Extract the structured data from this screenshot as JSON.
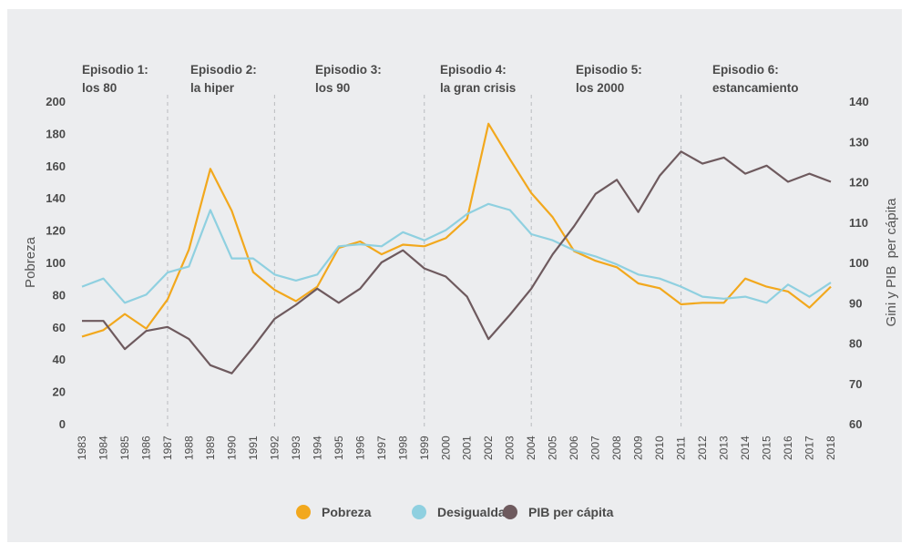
{
  "chart_data": {
    "type": "line",
    "title": "",
    "xlabel": "",
    "ylabel_left": "Pobreza",
    "ylabel_right": "Gini y PIB  per cápita",
    "x": [
      1983,
      1984,
      1985,
      1986,
      1987,
      1988,
      1989,
      1990,
      1991,
      1992,
      1993,
      1994,
      1995,
      1996,
      1997,
      1998,
      1999,
      2000,
      2001,
      2002,
      2003,
      2004,
      2005,
      2006,
      2007,
      2008,
      2009,
      2010,
      2011,
      2012,
      2013,
      2014,
      2015,
      2016,
      2017,
      2018
    ],
    "ylim_left": [
      0,
      200
    ],
    "ylim_right": [
      60,
      140
    ],
    "yticks_left": [
      0,
      20,
      40,
      60,
      80,
      100,
      120,
      140,
      160,
      180,
      200
    ],
    "yticks_right": [
      60,
      70,
      80,
      90,
      100,
      110,
      120,
      130,
      140
    ],
    "grid": false,
    "legend_position": "bottom-center",
    "series": [
      {
        "name": "Pobreza",
        "axis": "left",
        "color": "#F2A81D",
        "values": [
          54,
          58,
          68,
          59,
          77,
          108,
          158,
          132,
          94,
          83,
          76,
          85,
          109,
          113,
          105,
          111,
          110,
          115,
          127,
          186,
          164,
          143,
          128,
          107,
          101,
          97,
          87,
          84,
          74,
          75,
          75,
          90,
          85,
          82,
          72,
          85
        ]
      },
      {
        "name": "Desigualdad",
        "axis": "right",
        "color": "#8FD0E0",
        "values": [
          94,
          96,
          90,
          92,
          97.5,
          99,
          113,
          101,
          101,
          97,
          95.5,
          97,
          104,
          104.5,
          104,
          107.5,
          105.5,
          108,
          112,
          114.5,
          113,
          107,
          105.5,
          103,
          101.5,
          99.5,
          97,
          96,
          94,
          91.5,
          91,
          91.5,
          90,
          94.5,
          91.5,
          95
        ]
      },
      {
        "name": "PIB per cápita",
        "axis": "right",
        "color": "#6E5A5E",
        "values": [
          85.5,
          85.5,
          78.5,
          83,
          84,
          81,
          74.5,
          72.5,
          79,
          86,
          89.5,
          93.5,
          90,
          93.5,
          100,
          103,
          98.5,
          96.5,
          91.5,
          81,
          87,
          93.5,
          102,
          109,
          117,
          120.5,
          112.5,
          121.5,
          127.5,
          124.5,
          126,
          122,
          124,
          120,
          122,
          120
        ]
      }
    ],
    "episodes": [
      {
        "line1": "Episodio 1:",
        "line2": "los 80",
        "start": 1983
      },
      {
        "line1": "Episodio 2:",
        "line2": "la hiper",
        "start": 1987
      },
      {
        "line1": "Episodio 3:",
        "line2": "los 90",
        "start": 1992
      },
      {
        "line1": "Episodio 4:",
        "line2": "la gran crisis",
        "start": 1999
      },
      {
        "line1": "Episodio 5:",
        "line2": "los 2000",
        "start": 2004
      },
      {
        "line1": "Episodio 6:",
        "line2": "estancamiento",
        "start": 2011
      }
    ],
    "dividers": [
      1987,
      1992,
      1999,
      2004,
      2011
    ]
  },
  "legend": {
    "items": [
      {
        "label": "Pobreza",
        "color": "#F2A81D"
      },
      {
        "label": "Desigualdad",
        "color": "#8FD0E0"
      },
      {
        "label": "PIB per cápita",
        "color": "#6E5A5E"
      }
    ]
  }
}
